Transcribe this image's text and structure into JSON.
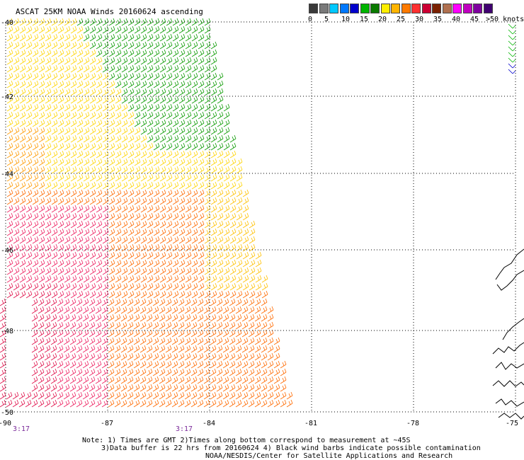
{
  "title": "ASCAT 25KM NOAA Winds 20160624 ascending",
  "legend": {
    "colors": [
      "#3a3a3a",
      "#7a7a7a",
      "#00c8ff",
      "#0078ff",
      "#0000cc",
      "#00b400",
      "#0a7a00",
      "#ffee00",
      "#ffb400",
      "#ff7a00",
      "#ff3030",
      "#cc0033",
      "#7a2000",
      "#b07050",
      "#ff00ff",
      "#c000c0",
      "#8000a0",
      "#400070"
    ],
    "ticks": [
      "0",
      "5",
      "10",
      "15",
      "20",
      "25",
      "30",
      "35",
      "40",
      "45",
      ">50 knots"
    ],
    "unit": "knots"
  },
  "map": {
    "lat_labels": [
      "-40",
      "-42",
      "-44",
      "-46",
      "-48",
      "-50"
    ],
    "lon_labels": [
      "-90",
      "-87",
      "-84",
      "-81",
      "-78",
      "-75"
    ],
    "lat_range": [
      -50,
      -40
    ],
    "lon_range": [
      -90,
      -75
    ],
    "grid": "dotted",
    "time_labels": [
      "3:17",
      "3:17"
    ]
  },
  "notes": [
    "Note: 1) Times are GMT 2)Times along bottom correspond to measurement at ~45S",
    "3)Data buffer is 22 hrs from 20160624 4) Black wind barbs indicate possible contamination",
    "NOAA/NESDIS/Center for Satellite Applications and Research"
  ]
}
